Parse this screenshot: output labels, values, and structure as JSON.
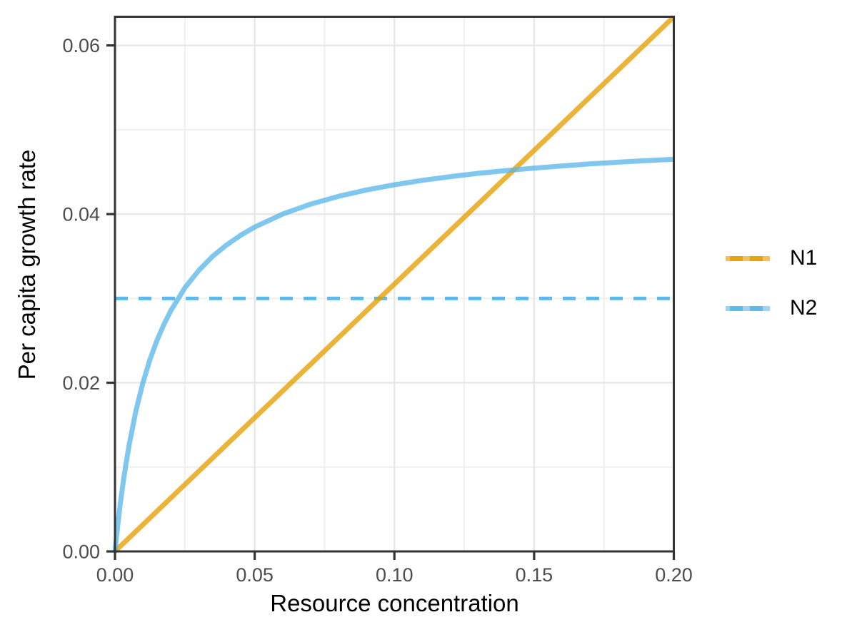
{
  "figure": {
    "background_color": "#FFFFFF",
    "panel_background_color": "#FFFFFF",
    "panel_border_color": "#333333",
    "grid_major_color": "#E7E7E7",
    "grid_minor_color": "#F0F0F0",
    "tick_mark_color": "#333333",
    "tick_label_color": "#4D4D4D",
    "axis_title_color": "#000000"
  },
  "legend": {
    "position": "right",
    "items": [
      {
        "label": "N1",
        "key": {
          "base": "#F0C15E",
          "dash": "#E8A210"
        }
      },
      {
        "label": "N2",
        "key": {
          "base": "#9ED3F3",
          "dash": "#60B9EB"
        }
      }
    ]
  },
  "chart_data": {
    "type": "line",
    "title": "",
    "xlabel": "Resource concentration",
    "ylabel": "Per capita growth rate",
    "xlim": [
      0,
      0.2
    ],
    "ylim": [
      0,
      0.0634
    ],
    "grid": true,
    "legend_position": "right",
    "x_ticks": {
      "values": [
        0,
        0.05,
        0.1,
        0.15,
        0.2
      ],
      "labels": [
        "0.00",
        "0.05",
        "0.10",
        "0.15",
        "0.20"
      ]
    },
    "y_ticks": {
      "values": [
        0,
        0.02,
        0.04,
        0.06
      ],
      "labels": [
        "0.00",
        "0.02",
        "0.04",
        "0.06"
      ]
    },
    "x_minor": [
      0.025,
      0.075,
      0.125,
      0.175
    ],
    "y_minor": [
      0.01,
      0.03,
      0.05
    ],
    "series": [
      {
        "name": "N2-mortality-line",
        "type": "hline",
        "linetype": "dashed",
        "color": "#56B4E9",
        "opacity": 0.94,
        "width": 5,
        "dash": "18 15",
        "y": 0.03,
        "in_legend": false
      },
      {
        "name": "N1",
        "type": "line",
        "linetype": "solid",
        "color": "#E69F00",
        "opacity": 0.78,
        "width": 7,
        "in_legend": true,
        "x": [
          0,
          0.2
        ],
        "y": [
          0,
          0.0634
        ]
      },
      {
        "name": "N2",
        "type": "line",
        "linetype": "solid",
        "color": "#56B4E9",
        "opacity": 0.75,
        "width": 7,
        "in_legend": true,
        "x": [
          0,
          0.001,
          0.002,
          0.003,
          0.004,
          0.005,
          0.0075,
          0.01,
          0.0125,
          0.015,
          0.0175,
          0.02,
          0.025,
          0.03,
          0.035,
          0.04,
          0.045,
          0.05,
          0.06,
          0.07,
          0.08,
          0.09,
          0.1,
          0.11,
          0.12,
          0.13,
          0.14,
          0.15,
          0.16,
          0.17,
          0.18,
          0.19,
          0.2
        ],
        "y": [
          0,
          0.00313,
          0.00588,
          0.00833,
          0.01053,
          0.0125,
          0.01667,
          0.02,
          0.02273,
          0.025,
          0.02692,
          0.02857,
          0.03125,
          0.03333,
          0.035,
          0.03636,
          0.0375,
          0.03846,
          0.04,
          0.04118,
          0.04211,
          0.04286,
          0.04348,
          0.044,
          0.04444,
          0.04483,
          0.04516,
          0.04545,
          0.04571,
          0.04595,
          0.04615,
          0.04634,
          0.04651
        ]
      }
    ]
  }
}
